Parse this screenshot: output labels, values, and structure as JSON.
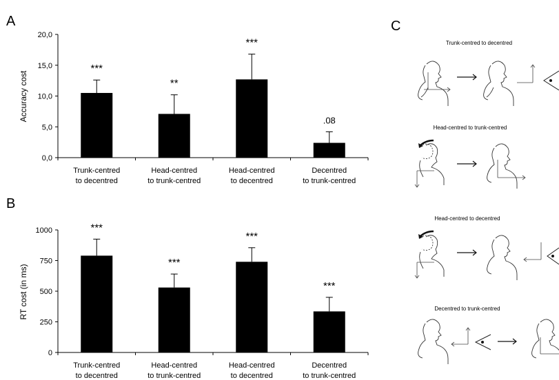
{
  "panels": {
    "a": "A",
    "b": "B",
    "c": "C"
  },
  "chart_data": [
    {
      "type": "bar",
      "panel": "A",
      "ylabel": "Accuracy cost",
      "categories": [
        [
          "Trunk-centred",
          "to decentred"
        ],
        [
          "Head-centred",
          "to trunk-centred"
        ],
        [
          "Head-centred",
          "to decentred"
        ],
        [
          "Decentred",
          "to trunk-centred"
        ]
      ],
      "values": [
        10.5,
        7.1,
        12.7,
        2.4
      ],
      "errors": [
        2.1,
        3.1,
        4.1,
        1.8
      ],
      "significance": [
        "***",
        "**",
        "***",
        ".08"
      ],
      "ylim": [
        0,
        20
      ],
      "yticks": [
        "0,0",
        "5,0",
        "10,0",
        "15,0",
        "20,0"
      ],
      "bar_color": "#000000"
    },
    {
      "type": "bar",
      "panel": "B",
      "ylabel": "RT cost (in ms)",
      "categories": [
        [
          "Trunk-centred",
          "to decentred"
        ],
        [
          "Head-centred",
          "to trunk-centred"
        ],
        [
          "Head-centred",
          "to decentred"
        ],
        [
          "Decentred",
          "to trunk-centred"
        ]
      ],
      "values": [
        790,
        530,
        740,
        335
      ],
      "errors": [
        135,
        110,
        115,
        115
      ],
      "significance": [
        "***",
        "***",
        "***",
        "***"
      ],
      "ylim": [
        0,
        1000
      ],
      "yticks": [
        "0",
        "250",
        "500",
        "750",
        "1000"
      ],
      "bar_color": "#000000"
    }
  ],
  "conditions": [
    {
      "title": "Trunk-centred to decentred"
    },
    {
      "title": "Head-centred to trunk-centred"
    },
    {
      "title": "Head-centred to decentred"
    },
    {
      "title": "Decentred to trunk-centred"
    }
  ]
}
